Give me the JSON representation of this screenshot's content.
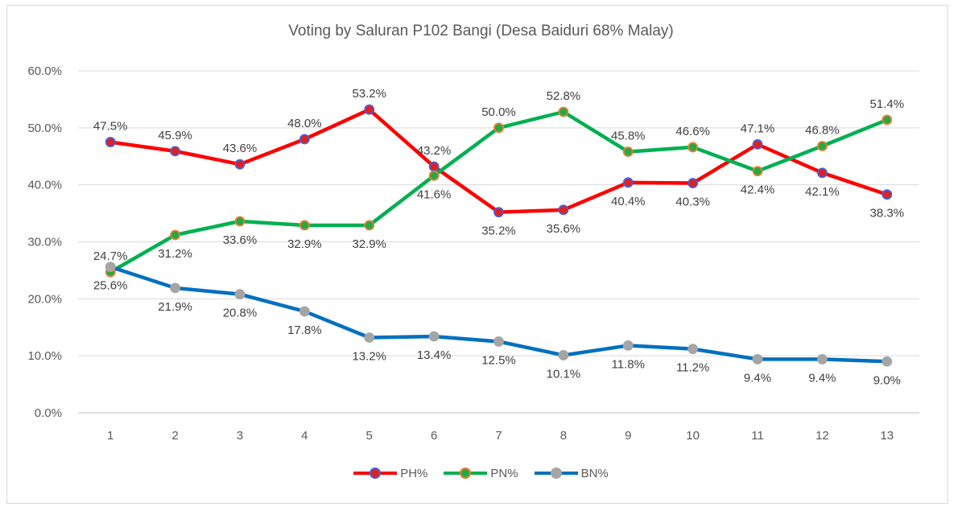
{
  "chart_data": {
    "type": "line",
    "title": "Voting by Saluran P102 Bangi (Desa Baiduri 68% Malay)",
    "xlabel": "",
    "ylabel": "",
    "ylim": [
      0,
      60
    ],
    "yticks": [
      "0.0%",
      "10.0%",
      "20.0%",
      "30.0%",
      "40.0%",
      "50.0%",
      "60.0%"
    ],
    "categories": [
      "1",
      "2",
      "3",
      "4",
      "5",
      "6",
      "7",
      "8",
      "9",
      "10",
      "11",
      "12",
      "13"
    ],
    "grid": true,
    "legend_position": "bottom",
    "series": [
      {
        "name": "PH%",
        "color": "#ff0000",
        "marker_fill": "#e0201e",
        "marker_edge": "#4a5ed8",
        "values": [
          47.5,
          45.9,
          43.6,
          48.0,
          53.2,
          43.2,
          35.2,
          35.6,
          40.4,
          40.3,
          47.1,
          42.1,
          38.3
        ],
        "labels": [
          "47.5%",
          "45.9%",
          "43.6%",
          "48.0%",
          "53.2%",
          "43.2%",
          "35.2%",
          "35.6%",
          "40.4%",
          "40.3%",
          "47.1%",
          "42.1%",
          "38.3%"
        ]
      },
      {
        "name": "PN%",
        "color": "#00b050",
        "marker_fill": "#22aa44",
        "marker_edge": "#ed7d31",
        "values": [
          24.7,
          31.2,
          33.6,
          32.9,
          32.9,
          41.6,
          50.0,
          52.8,
          45.8,
          46.6,
          42.4,
          46.8,
          51.4
        ],
        "labels": [
          "24.7%",
          "31.2%",
          "33.6%",
          "32.9%",
          "32.9%",
          "41.6%",
          "50.0%",
          "52.8%",
          "45.8%",
          "46.6%",
          "42.4%",
          "46.8%",
          "51.4%"
        ]
      },
      {
        "name": "BN%",
        "color": "#0070c0",
        "marker_fill": "#a5a5a5",
        "marker_edge": "#a5a5a5",
        "values": [
          25.6,
          21.9,
          20.8,
          17.8,
          13.2,
          13.4,
          12.5,
          10.1,
          11.8,
          11.2,
          9.4,
          9.4,
          9.0
        ],
        "labels": [
          "25.6%",
          "21.9%",
          "20.8%",
          "17.8%",
          "13.2%",
          "13.4%",
          "12.5%",
          "10.1%",
          "11.8%",
          "11.2%",
          "9.4%",
          "9.4%",
          "9.0%"
        ]
      }
    ]
  }
}
